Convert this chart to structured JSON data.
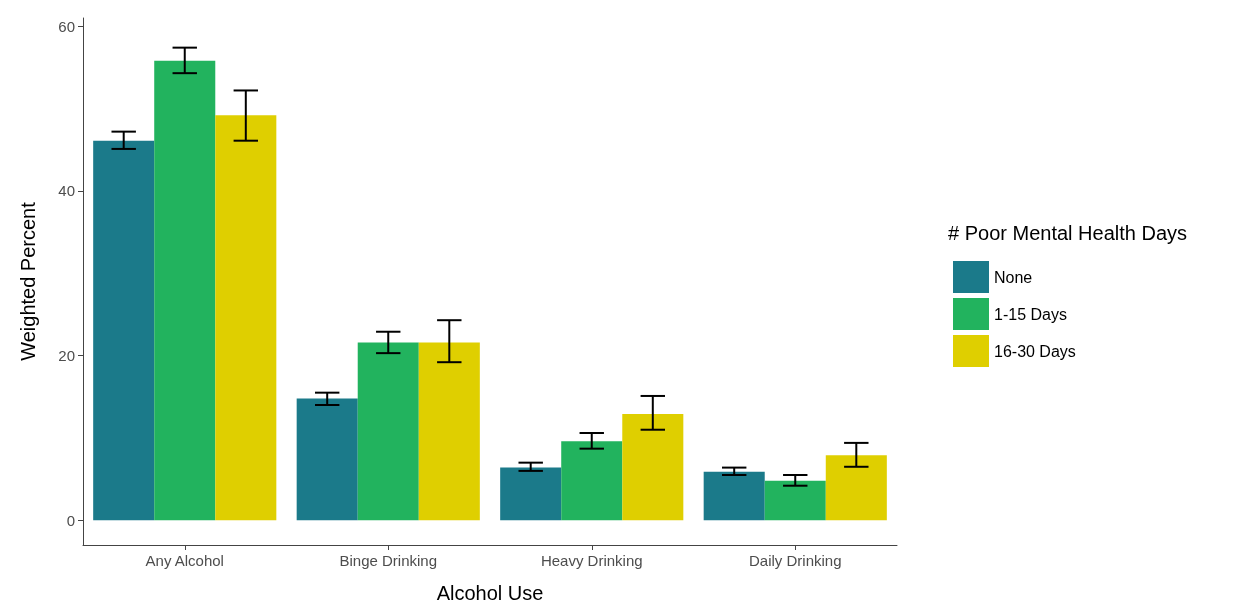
{
  "chart_data": {
    "type": "bar",
    "xlabel": "Alcohol Use",
    "ylabel": "Weighted Percent",
    "legend_title": "# Poor Mental Health Days",
    "categories": [
      "Any Alcohol",
      "Binge Drinking",
      "Heavy Drinking",
      "Daily Drinking"
    ],
    "series": [
      {
        "name": "None",
        "color": "#1b7a8a",
        "values": [
          46.1,
          14.8,
          6.4,
          5.9
        ],
        "errors": [
          [
            45.1,
            47.2
          ],
          [
            14.0,
            15.5
          ],
          [
            6.0,
            7.0
          ],
          [
            5.5,
            6.4
          ]
        ]
      },
      {
        "name": "1-15 Days",
        "color": "#22b35e",
        "values": [
          55.8,
          21.6,
          9.6,
          4.8
        ],
        "errors": [
          [
            54.3,
            57.4
          ],
          [
            20.3,
            22.9
          ],
          [
            8.7,
            10.6
          ],
          [
            4.2,
            5.5
          ]
        ]
      },
      {
        "name": "16-30 Days",
        "color": "#dfcf00",
        "values": [
          49.2,
          21.6,
          12.9,
          7.9
        ],
        "errors": [
          [
            46.1,
            52.2
          ],
          [
            19.2,
            24.3
          ],
          [
            11.0,
            15.1
          ],
          [
            6.5,
            9.4
          ]
        ]
      }
    ],
    "ylim": [
      -3,
      61
    ],
    "yticks": [
      0,
      20,
      40,
      60
    ],
    "grid": false,
    "legend": "right"
  }
}
